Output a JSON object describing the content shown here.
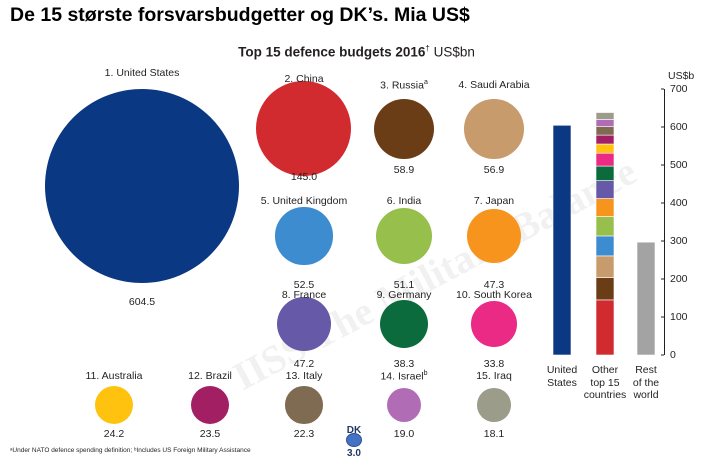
{
  "heading": "De 15 største forsvarsbudgetter og DK’s. Mia US$",
  "footnote": "ᵃUnder NATO defence spending definition; ᵇIncludes US Foreign Military Assistance",
  "watermark": "IISS The Military Balance",
  "colors": {
    "united_states": "#0b3882",
    "rest_of_world": "#a3a3a3",
    "dk": "#4472c4"
  },
  "chart_data": {
    "type": "bubble",
    "title": "Top 15 defence budgets 2016",
    "title_marker": "†",
    "unit": "US$bn",
    "countries": [
      {
        "rank_label": "1. United States",
        "name": "United States",
        "value": 604.5,
        "value_label": "604.5",
        "color": "#0b3882"
      },
      {
        "rank_label": "2. China",
        "name": "China",
        "value": 145.0,
        "value_label": "145.0",
        "color": "#d12a2f"
      },
      {
        "rank_label": "3. Russia",
        "name": "Russia",
        "marker": "a",
        "value": 58.9,
        "value_label": "58.9",
        "color": "#6b3d16"
      },
      {
        "rank_label": "4. Saudi Arabia",
        "name": "Saudi Arabia",
        "value": 56.9,
        "value_label": "56.9",
        "color": "#c89b6c"
      },
      {
        "rank_label": "5. United Kingdom",
        "name": "United Kingdom",
        "value": 52.5,
        "value_label": "52.5",
        "color": "#3e8cd0"
      },
      {
        "rank_label": "6. India",
        "name": "India",
        "value": 51.1,
        "value_label": "51.1",
        "color": "#96bf4c"
      },
      {
        "rank_label": "7. Japan",
        "name": "Japan",
        "value": 47.3,
        "value_label": "47.3",
        "color": "#f7941e"
      },
      {
        "rank_label": "8. France",
        "name": "France",
        "value": 47.2,
        "value_label": "47.2",
        "color": "#6559a8"
      },
      {
        "rank_label": "9. Germany",
        "name": "Germany",
        "value": 38.3,
        "value_label": "38.3",
        "color": "#0c6b3c"
      },
      {
        "rank_label": "10. South Korea",
        "name": "South Korea",
        "value": 33.8,
        "value_label": "33.8",
        "color": "#ea2a84"
      },
      {
        "rank_label": "11. Australia",
        "name": "Australia",
        "value": 24.2,
        "value_label": "24.2",
        "color": "#ffc20e"
      },
      {
        "rank_label": "12. Brazil",
        "name": "Brazil",
        "value": 23.5,
        "value_label": "23.5",
        "color": "#a21f64"
      },
      {
        "rank_label": "13. Italy",
        "name": "Italy",
        "value": 22.3,
        "value_label": "22.3",
        "color": "#7f6b52"
      },
      {
        "rank_label": "14. Israel",
        "name": "Israel",
        "marker": "b",
        "value": 19.0,
        "value_label": "19.0",
        "color": "#b06db5"
      },
      {
        "rank_label": "15. Iraq",
        "name": "Iraq",
        "value": 18.1,
        "value_label": "18.1",
        "color": "#9c9c8a"
      }
    ],
    "dk": {
      "label": "DK",
      "value": 3.0,
      "value_label": "3.0"
    },
    "stacked_bars": {
      "axis_unit": "US$b",
      "ylim": [
        0,
        700
      ],
      "ticks": [
        0,
        100,
        200,
        300,
        400,
        500,
        600,
        700
      ],
      "bars": [
        {
          "label_lines": [
            "United",
            "States"
          ],
          "value": 604.5
        },
        {
          "label_lines": [
            "Other",
            "top 15",
            "countries"
          ],
          "value": 638.1
        },
        {
          "label_lines": [
            "Rest",
            "of the",
            "world"
          ],
          "value": 297
        }
      ]
    }
  }
}
